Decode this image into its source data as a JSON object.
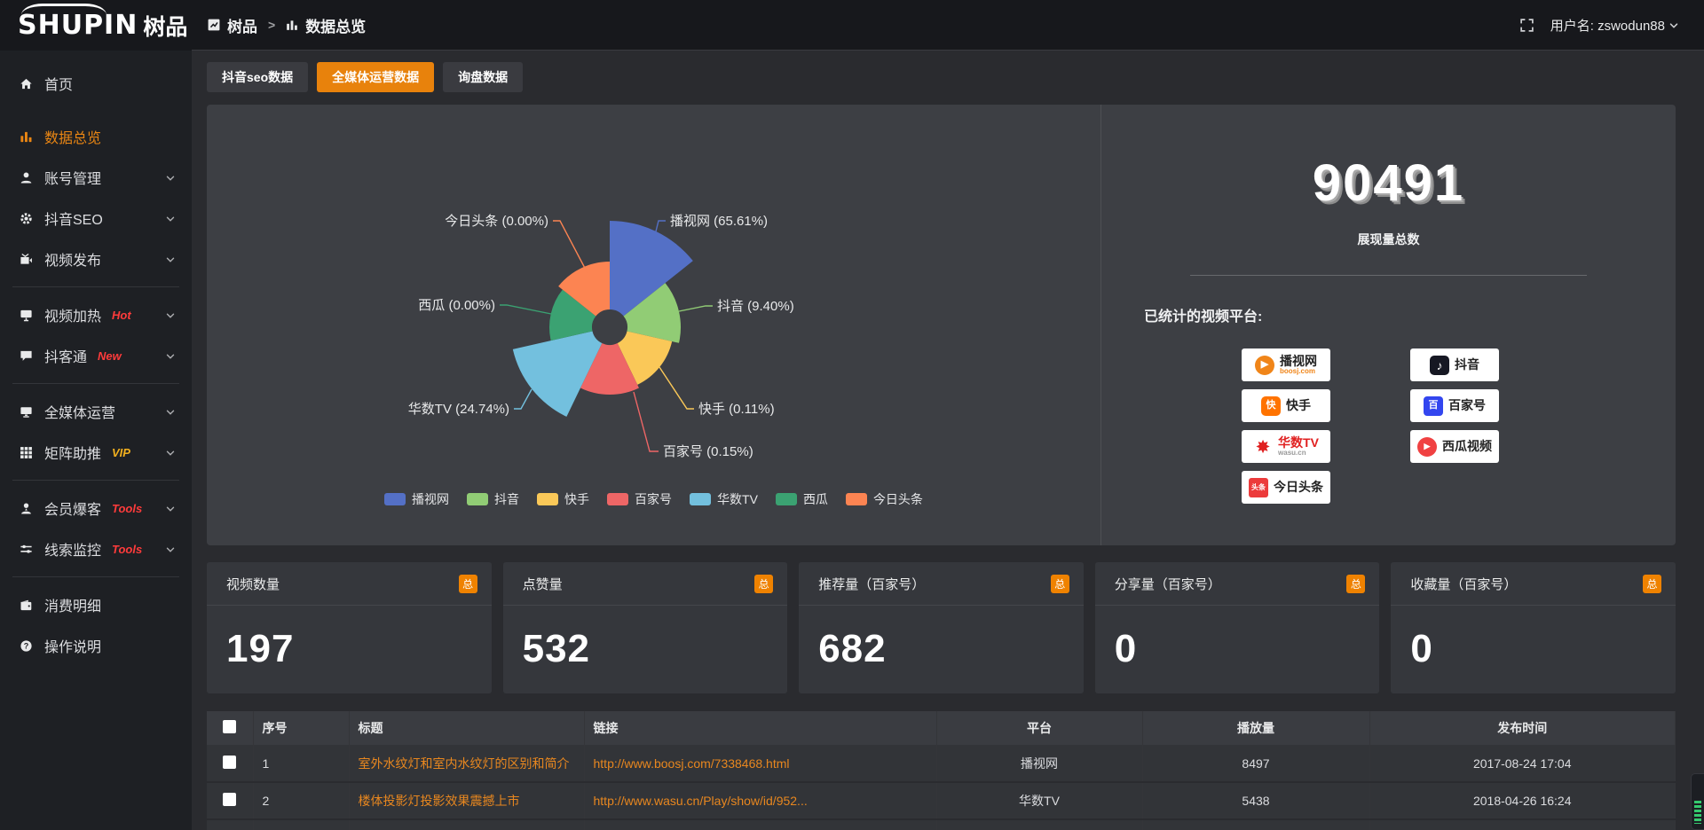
{
  "topbar": {
    "logo_en": "SHUPIN",
    "logo_cn": "树品",
    "breadcrumb": {
      "root": "树品",
      "current": "数据总览"
    },
    "username": "用户名: zswodun88"
  },
  "sidebar": {
    "items": [
      {
        "label": "首页",
        "icon": "home-icon"
      },
      {
        "label": "数据总览",
        "icon": "bar-chart-icon",
        "active": true
      },
      {
        "label": "账号管理",
        "icon": "user-icon",
        "chevron": true
      },
      {
        "label": "抖音SEO",
        "icon": "gear-icon",
        "chevron": true
      },
      {
        "label": "视频发布",
        "icon": "video-publish-icon",
        "chevron": true
      },
      {
        "divider": true
      },
      {
        "label": "视频加热",
        "icon": "screen-heat-icon",
        "badge": "Hot",
        "badge_color": "#ff3b3b",
        "chevron": true
      },
      {
        "label": "抖客通",
        "icon": "chat-icon",
        "badge": "New",
        "badge_color": "#ff3b3b",
        "chevron": true
      },
      {
        "divider": true
      },
      {
        "label": "全媒体运营",
        "icon": "monitor-icon",
        "chevron": true
      },
      {
        "label": "矩阵助推",
        "icon": "grid-icon",
        "badge": "VIP",
        "badge_color": "#f2b01e",
        "chevron": true
      },
      {
        "divider": true
      },
      {
        "label": "会员爆客",
        "icon": "member-icon",
        "badge": "Tools",
        "badge_color": "#ff3b3b",
        "chevron": true
      },
      {
        "label": "线索监控",
        "icon": "sliders-icon",
        "badge": "Tools",
        "badge_color": "#ff3b3b",
        "chevron": true
      },
      {
        "divider": true
      },
      {
        "label": "消费明细",
        "icon": "wallet-icon"
      },
      {
        "label": "操作说明",
        "icon": "help-icon"
      }
    ]
  },
  "tabs": [
    {
      "label": "抖音seo数据",
      "active": false
    },
    {
      "label": "全媒体运营数据",
      "active": true
    },
    {
      "label": "询盘数据",
      "active": false
    }
  ],
  "chart_data": {
    "type": "pie",
    "subtype": "nightingale-rose",
    "series": [
      {
        "name": "播视网",
        "value_pct": 65.61,
        "display": "播视网 (65.61%)",
        "color": "#5470c6"
      },
      {
        "name": "抖音",
        "value_pct": 9.4,
        "display": "抖音 (9.40%)",
        "color": "#91cc75"
      },
      {
        "name": "快手",
        "value_pct": 0.11,
        "display": "快手 (0.11%)",
        "color": "#fac858"
      },
      {
        "name": "百家号",
        "value_pct": 0.15,
        "display": "百家号 (0.15%)",
        "color": "#ee6666"
      },
      {
        "name": "华数TV",
        "value_pct": 24.74,
        "display": "华数TV (24.74%)",
        "color": "#73c0de"
      },
      {
        "name": "西瓜",
        "value_pct": 0.0,
        "display": "西瓜 (0.00%)",
        "color": "#3ba272"
      },
      {
        "name": "今日头条",
        "value_pct": 0.0,
        "display": "今日头条 (0.00%)",
        "color": "#fc8452"
      }
    ],
    "legend": [
      "播视网",
      "抖音",
      "快手",
      "百家号",
      "华数TV",
      "西瓜",
      "今日头条"
    ],
    "legend_position": "bottom",
    "label_format": "{name} ({pct}%)"
  },
  "summary": {
    "total_value": "90491",
    "total_label": "展现量总数",
    "platforms_label": "已统计的视频平台:",
    "platforms_left": [
      {
        "name": "播视网",
        "sub": "boosj.com"
      },
      {
        "name": "快手",
        "sub": ""
      },
      {
        "name": "华数TV",
        "sub": "wasu.cn"
      },
      {
        "name": "今日头条",
        "sub": ""
      }
    ],
    "platforms_right": [
      {
        "name": "抖音",
        "sub": ""
      },
      {
        "name": "百家号",
        "sub": ""
      },
      {
        "name": "西瓜视频",
        "sub": ""
      }
    ]
  },
  "stat_cards": [
    {
      "title": "视频数量",
      "badge": "总",
      "value": "197"
    },
    {
      "title": "点赞量",
      "badge": "总",
      "value": "532"
    },
    {
      "title": "推荐量（百家号）",
      "badge": "总",
      "value": "682"
    },
    {
      "title": "分享量（百家号）",
      "badge": "总",
      "value": "0"
    },
    {
      "title": "收藏量（百家号）",
      "badge": "总",
      "value": "0"
    }
  ],
  "table": {
    "headers": [
      "序号",
      "标题",
      "链接",
      "平台",
      "播放量",
      "发布时间"
    ],
    "rows": [
      {
        "index": "1",
        "title": "室外水纹灯和室内水纹灯的区别和简介",
        "link": "http://www.boosj.com/7338468.html",
        "platform": "播视网",
        "views": "8497",
        "time": "2017-08-24 17:04"
      },
      {
        "index": "2",
        "title": "楼体投影灯投影效果震撼上市",
        "link": "http://www.wasu.cn/Play/show/id/952...",
        "platform": "华数TV",
        "views": "5438",
        "time": "2018-04-26 16:24"
      },
      {
        "index": "",
        "title": "",
        "link": "",
        "platform": "",
        "views": "",
        "time": ""
      }
    ]
  },
  "colors": {
    "accent_orange": "#e8820c",
    "link_orange": "#e8871f",
    "hot_red": "#ff3b3b",
    "vip_yellow": "#f2b01e"
  }
}
